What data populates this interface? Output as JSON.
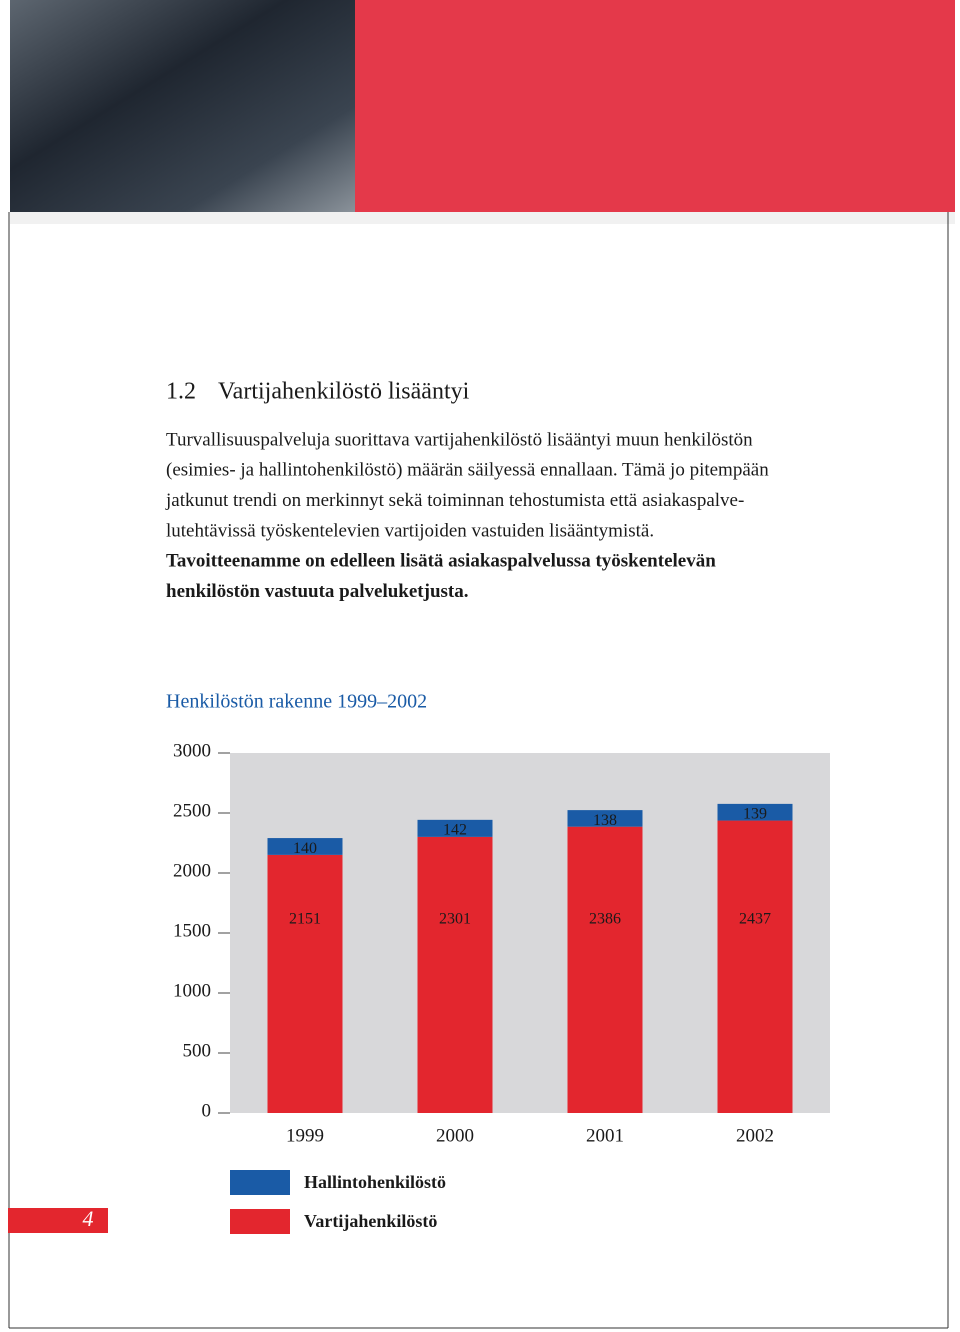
{
  "heading": {
    "number": "1.2",
    "title": "Vartijahenkilöstö lisääntyi"
  },
  "paragraph": {
    "lines": [
      "Turvallisuuspalveluja suorittava vartijahenkilöstö lisääntyi muun henkilöstön",
      "(esimies- ja hallintohenkilöstö) määrän säilyessä ennallaan. Tämä jo pitempään",
      "jatkunut trendi on merkinnyt sekä toiminnan tehostumista että asiakaspalve-",
      "lutehtävissä työskentelevien vartijoiden vastuiden lisääntymistä."
    ]
  },
  "bold_paragraph": {
    "lines": [
      "Tavoitteenamme on edelleen lisätä asiakaspalvelussa työskentelevän",
      "henkilöstön vastuuta palveluketjusta."
    ]
  },
  "page_number": "4",
  "chart_data": {
    "type": "stacked-bar",
    "title": "Henkilöstön rakenne 1999–2002",
    "categories": [
      "1999",
      "2000",
      "2001",
      "2002"
    ],
    "series": [
      {
        "name": "Vartijahenkilöstö",
        "color": "#e3262e",
        "values": [
          2151,
          2301,
          2386,
          2437
        ]
      },
      {
        "name": "Hallintohenkilöstö",
        "color": "#1a5ba6",
        "values": [
          140,
          142,
          138,
          139
        ]
      }
    ],
    "ylim": [
      0,
      3000
    ],
    "yticks": [
      0,
      500,
      1000,
      1500,
      2000,
      2500,
      3000
    ],
    "plot_background": "#d8d8da"
  }
}
